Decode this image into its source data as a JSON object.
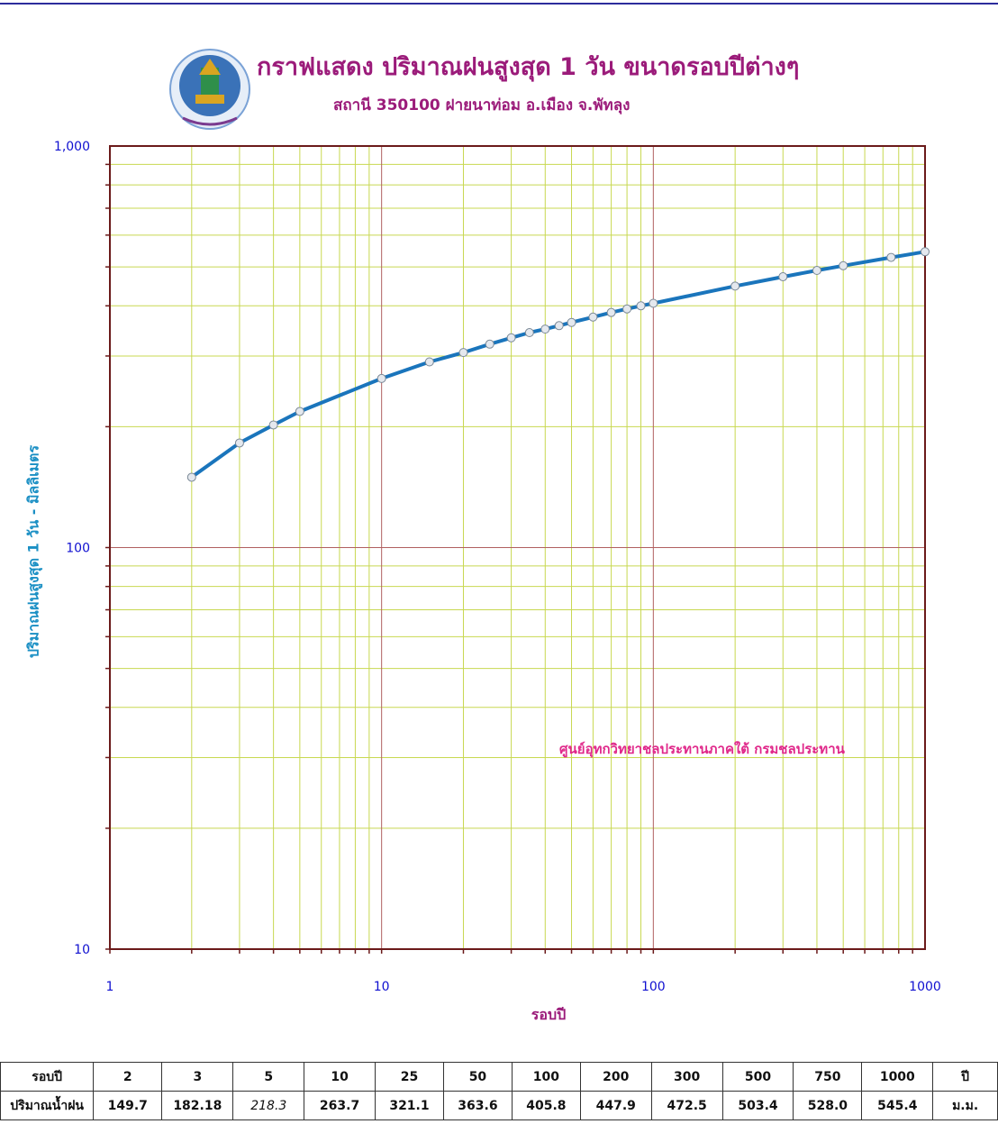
{
  "header": {
    "title": "กราฟแสดง ปริมาณฝนสูงสุด 1 วัน ขนาดรอบปีต่างๆ",
    "subtitle": "สถานี 350100 ฝายนาท่อม อ.เมือง จ.พัทลุง",
    "credit": "ศูนย์อุทกวิทยาชลประทานภาคใต้ กรมชลประทาน"
  },
  "colors": {
    "title": "#9b1b7a",
    "curve": "#1a75bc",
    "axis": "#6b1a1a",
    "minor_grid": "#c8d850",
    "major_grid": "#b06060",
    "tick_labels": "#1010d0",
    "ylabel": "#1a8fc4",
    "credit": "#e0288a"
  },
  "chart_data": {
    "type": "line",
    "xscale": "log",
    "yscale": "log",
    "xlim": [
      1,
      1000
    ],
    "ylim": [
      10,
      1000
    ],
    "xlabel": "รอบปี",
    "ylabel": "ปริมาณฝนสูงสุด 1 วัน - มิลลิเมตร",
    "x_ticks": [
      1,
      10,
      100,
      1000
    ],
    "x_tick_labels": [
      "1",
      "10",
      "100",
      "1000"
    ],
    "y_ticks": [
      10,
      100,
      1000
    ],
    "y_tick_labels": [
      "10",
      "100",
      "1,000"
    ],
    "grid": true,
    "x": [
      2,
      3,
      4,
      5,
      10,
      15,
      20,
      25,
      30,
      35,
      40,
      45,
      50,
      60,
      70,
      80,
      90,
      100,
      200,
      300,
      400,
      500,
      750,
      1000
    ],
    "y": [
      149.7,
      182.18,
      202.0,
      218.3,
      263.7,
      290.0,
      306.0,
      321.1,
      333.0,
      343.0,
      350.0,
      357.0,
      363.6,
      375.0,
      385.0,
      393.0,
      400.0,
      405.8,
      447.9,
      472.5,
      490.0,
      503.4,
      528.0,
      545.4
    ]
  },
  "table": {
    "rows": [
      [
        "รอบปี",
        "2",
        "3",
        "5",
        "10",
        "25",
        "50",
        "100",
        "200",
        "300",
        "500",
        "750",
        "1000",
        "ปี"
      ],
      [
        "ปริมาณน้ำฝน",
        "149.7",
        "182.18",
        "218.3",
        "263.7",
        "321.1",
        "363.6",
        "405.8",
        "447.9",
        "472.5",
        "503.4",
        "528.0",
        "545.4",
        "ม.ม."
      ]
    ]
  }
}
